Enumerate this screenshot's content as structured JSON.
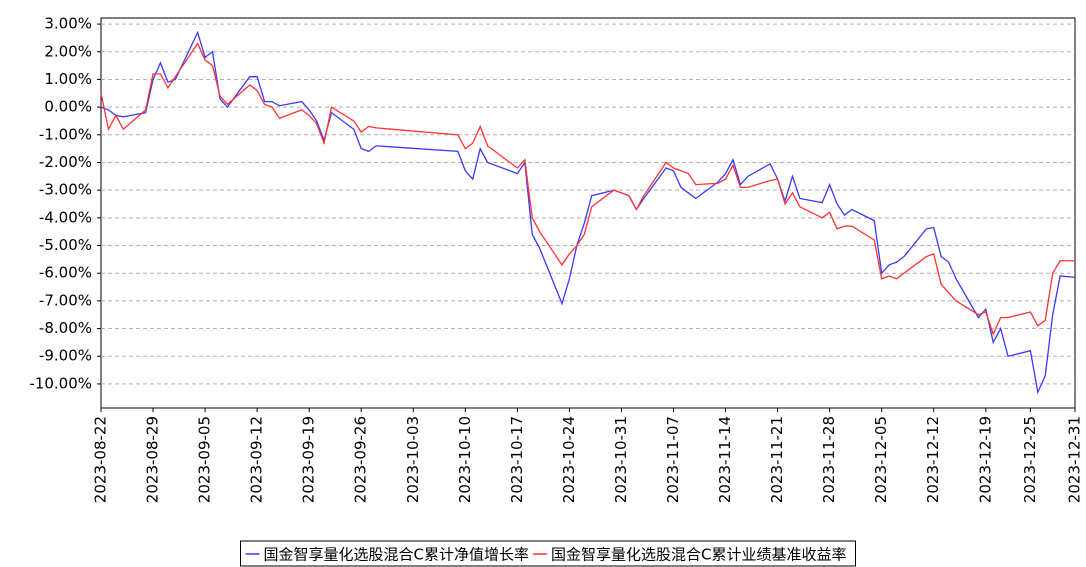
{
  "chart_data": {
    "type": "line",
    "x": [
      "2023-08-22",
      "2023-08-23",
      "2023-08-24",
      "2023-08-25",
      "2023-08-28",
      "2023-08-29",
      "2023-08-30",
      "2023-08-31",
      "2023-09-01",
      "2023-09-04",
      "2023-09-05",
      "2023-09-06",
      "2023-09-07",
      "2023-09-08",
      "2023-09-11",
      "2023-09-12",
      "2023-09-13",
      "2023-09-14",
      "2023-09-15",
      "2023-09-18",
      "2023-09-19",
      "2023-09-20",
      "2023-09-21",
      "2023-09-22",
      "2023-09-25",
      "2023-09-26",
      "2023-09-27",
      "2023-09-28",
      "2023-10-09",
      "2023-10-10",
      "2023-10-11",
      "2023-10-12",
      "2023-10-13",
      "2023-10-16",
      "2023-10-17",
      "2023-10-18",
      "2023-10-19",
      "2023-10-20",
      "2023-10-23",
      "2023-10-24",
      "2023-10-25",
      "2023-10-26",
      "2023-10-27",
      "2023-10-30",
      "2023-10-31",
      "2023-11-01",
      "2023-11-02",
      "2023-11-03",
      "2023-11-06",
      "2023-11-07",
      "2023-11-08",
      "2023-11-09",
      "2023-11-10",
      "2023-11-13",
      "2023-11-14",
      "2023-11-15",
      "2023-11-16",
      "2023-11-17",
      "2023-11-20",
      "2023-11-21",
      "2023-11-22",
      "2023-11-23",
      "2023-11-24",
      "2023-11-27",
      "2023-11-28",
      "2023-11-29",
      "2023-11-30",
      "2023-12-01",
      "2023-12-04",
      "2023-12-05",
      "2023-12-06",
      "2023-12-07",
      "2023-12-08",
      "2023-12-11",
      "2023-12-12",
      "2023-12-13",
      "2023-12-14",
      "2023-12-15",
      "2023-12-18",
      "2023-12-19",
      "2023-12-20",
      "2023-12-21",
      "2023-12-22",
      "2023-12-25",
      "2023-12-26",
      "2023-12-27",
      "2023-12-28",
      "2023-12-29",
      "2023-12-31"
    ],
    "series": [
      {
        "name": "国金智享量化选股混合C累计净值增长率",
        "color": "#3a3aff",
        "values": [
          0.0,
          -0.1,
          -0.3,
          -0.35,
          -0.2,
          1.0,
          1.6,
          0.9,
          1.0,
          2.7,
          1.8,
          2.0,
          0.3,
          0.0,
          1.1,
          1.1,
          0.2,
          0.2,
          0.05,
          0.2,
          -0.1,
          -0.5,
          -1.2,
          -0.2,
          -0.8,
          -1.5,
          -1.6,
          -1.4,
          -1.6,
          -2.3,
          -2.6,
          -1.5,
          -2.0,
          -2.3,
          -2.4,
          -2.0,
          -4.6,
          -5.1,
          -7.1,
          -6.2,
          -5.0,
          -4.2,
          -3.2,
          -3.0,
          -3.1,
          -3.2,
          -3.7,
          -3.3,
          -2.2,
          -2.3,
          -2.9,
          -3.1,
          -3.3,
          -2.7,
          -2.4,
          -1.9,
          -2.8,
          -2.5,
          -2.05,
          -2.6,
          -3.4,
          -2.5,
          -3.3,
          -3.45,
          -2.8,
          -3.5,
          -3.9,
          -3.7,
          -4.1,
          -6.0,
          -5.7,
          -5.6,
          -5.4,
          -4.4,
          -4.35,
          -5.4,
          -5.6,
          -6.2,
          -7.6,
          -7.3,
          -8.5,
          -8.0,
          -9.0,
          -8.8,
          -10.3,
          -9.7,
          -7.5,
          -6.1,
          -6.15
        ]
      },
      {
        "name": "国金智享量化选股混合C累计业绩基准收益率",
        "color": "#ff3333",
        "values": [
          0.5,
          -0.8,
          -0.3,
          -0.8,
          -0.1,
          1.2,
          1.2,
          0.7,
          1.1,
          2.3,
          1.7,
          1.5,
          0.4,
          0.1,
          0.8,
          0.6,
          0.1,
          0.0,
          -0.4,
          -0.1,
          -0.3,
          -0.6,
          -1.3,
          0.0,
          -0.5,
          -0.9,
          -0.7,
          -0.75,
          -1.0,
          -1.5,
          -1.3,
          -0.7,
          -1.4,
          -2.0,
          -2.2,
          -1.9,
          -4.0,
          -4.5,
          -5.7,
          -5.3,
          -5.0,
          -4.6,
          -3.6,
          -3.0,
          -3.1,
          -3.2,
          -3.7,
          -3.2,
          -2.0,
          -2.2,
          -2.3,
          -2.4,
          -2.8,
          -2.75,
          -2.6,
          -2.1,
          -2.9,
          -2.9,
          -2.65,
          -2.6,
          -3.5,
          -3.1,
          -3.6,
          -4.0,
          -3.8,
          -4.4,
          -4.3,
          -4.3,
          -4.8,
          -6.2,
          -6.1,
          -6.2,
          -6.0,
          -5.4,
          -5.3,
          -6.4,
          -6.7,
          -7.0,
          -7.5,
          -7.4,
          -8.2,
          -7.6,
          -7.6,
          -7.4,
          -7.9,
          -7.7,
          -6.0,
          -5.55,
          -5.55
        ]
      }
    ],
    "xlim": [
      "2023-08-22",
      "2023-12-31"
    ],
    "xticks": [
      "2023-08-22",
      "2023-08-29",
      "2023-09-05",
      "2023-09-12",
      "2023-09-19",
      "2023-09-26",
      "2023-10-03",
      "2023-10-10",
      "2023-10-17",
      "2023-10-24",
      "2023-10-31",
      "2023-11-07",
      "2023-11-14",
      "2023-11-21",
      "2023-11-28",
      "2023-12-05",
      "2023-12-12",
      "2023-12-19",
      "2023-12-25",
      "2023-12-31"
    ],
    "ylim": [
      -10.87,
      3.22
    ],
    "yticks": [
      {
        "value": 3,
        "label": "3.00%"
      },
      {
        "value": 2,
        "label": "2.00%"
      },
      {
        "value": 1,
        "label": "1.00%"
      },
      {
        "value": 0,
        "label": "0.00%"
      },
      {
        "value": -1,
        "label": "-1.00%"
      },
      {
        "value": -2,
        "label": "-2.00%"
      },
      {
        "value": -3,
        "label": "-3.00%"
      },
      {
        "value": -4,
        "label": "-4.00%"
      },
      {
        "value": -5,
        "label": "-5.00%"
      },
      {
        "value": -6,
        "label": "-6.00%"
      },
      {
        "value": -7,
        "label": "-7.00%"
      },
      {
        "value": -8,
        "label": "-8.00%"
      },
      {
        "value": -9,
        "label": "-9.00%"
      },
      {
        "value": -10,
        "label": "-10.00%"
      }
    ],
    "grid": true,
    "legend": "bottom"
  }
}
